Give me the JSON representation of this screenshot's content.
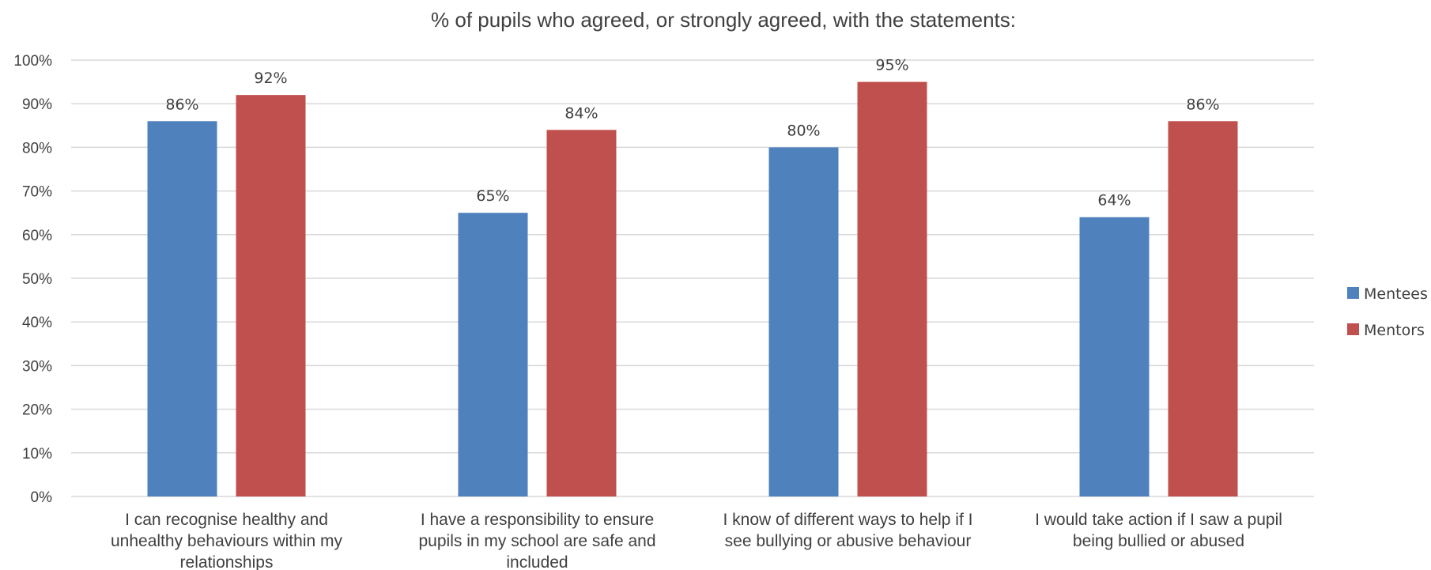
{
  "chart_data": {
    "type": "bar",
    "title": "% of pupils who agreed, or strongly agreed, with the statements:",
    "xlabel": "",
    "ylabel": "",
    "ylim": [
      0,
      100
    ],
    "yticks": [
      "0%",
      "10%",
      "20%",
      "30%",
      "40%",
      "50%",
      "60%",
      "70%",
      "80%",
      "90%",
      "100%"
    ],
    "grid": true,
    "legend_position": "right",
    "categories": [
      [
        "I can recognise healthy and",
        "unhealthy behaviours within my",
        "relationships"
      ],
      [
        "I have a responsibility to ensure",
        "pupils in my school are safe and",
        "included"
      ],
      [
        "I know of different ways to help if I",
        "see bullying or abusive behaviour"
      ],
      [
        "I would take action if I saw a pupil",
        "being bullied or abused"
      ]
    ],
    "series": [
      {
        "name": "Mentees",
        "color": "#4f81bd",
        "values": [
          86,
          65,
          80,
          64
        ],
        "labels": [
          "86%",
          "65%",
          "80%",
          "64%"
        ]
      },
      {
        "name": "Mentors",
        "color": "#c0504d",
        "values": [
          92,
          84,
          95,
          86
        ],
        "labels": [
          "92%",
          "84%",
          "95%",
          "86%"
        ]
      }
    ]
  }
}
